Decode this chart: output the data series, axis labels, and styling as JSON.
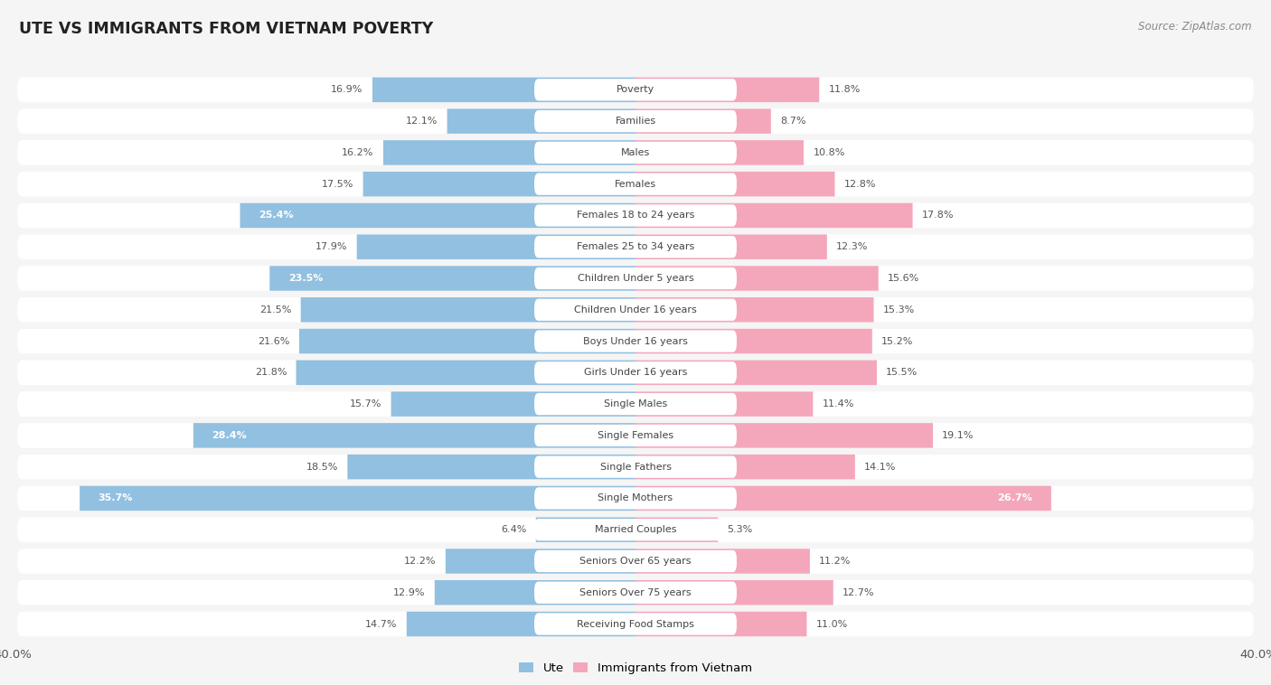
{
  "title": "UTE VS IMMIGRANTS FROM VIETNAM POVERTY",
  "source": "Source: ZipAtlas.com",
  "categories": [
    "Poverty",
    "Families",
    "Males",
    "Females",
    "Females 18 to 24 years",
    "Females 25 to 34 years",
    "Children Under 5 years",
    "Children Under 16 years",
    "Boys Under 16 years",
    "Girls Under 16 years",
    "Single Males",
    "Single Females",
    "Single Fathers",
    "Single Mothers",
    "Married Couples",
    "Seniors Over 65 years",
    "Seniors Over 75 years",
    "Receiving Food Stamps"
  ],
  "ute_values": [
    16.9,
    12.1,
    16.2,
    17.5,
    25.4,
    17.9,
    23.5,
    21.5,
    21.6,
    21.8,
    15.7,
    28.4,
    18.5,
    35.7,
    6.4,
    12.2,
    12.9,
    14.7
  ],
  "vietnam_values": [
    11.8,
    8.7,
    10.8,
    12.8,
    17.8,
    12.3,
    15.6,
    15.3,
    15.2,
    15.5,
    11.4,
    19.1,
    14.1,
    26.7,
    5.3,
    11.2,
    12.7,
    11.0
  ],
  "ute_color": "#92c0e0",
  "vietnam_color": "#f4a7bb",
  "axis_max": 40.0,
  "background_color": "#f5f5f5",
  "row_bg_color": "#ffffff",
  "row_separator_color": "#dddddd",
  "legend_ute": "Ute",
  "legend_vietnam": "Immigrants from Vietnam",
  "label_inside_threshold": 22.0
}
